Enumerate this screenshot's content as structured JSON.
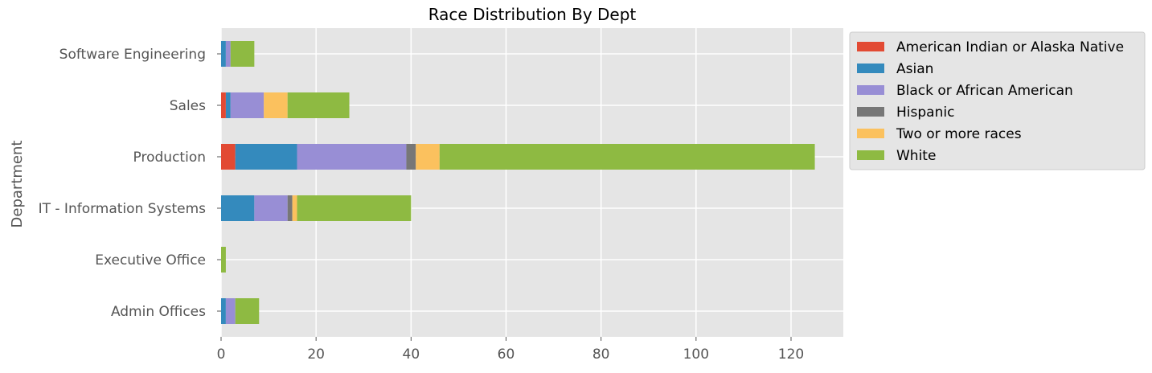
{
  "chart_data": {
    "type": "bar",
    "orientation": "horizontal",
    "stacked": true,
    "title": "Race Distribution By Dept",
    "xlabel": "",
    "ylabel": "Department",
    "xlim": [
      0,
      131
    ],
    "xticks": [
      0,
      20,
      40,
      60,
      80,
      100,
      120
    ],
    "grid": true,
    "legend_position": "outside-right",
    "categories": [
      "Admin Offices",
      "Executive Office",
      "IT - Information Systems",
      "Production",
      "Sales",
      "Software Engineering"
    ],
    "series": [
      {
        "name": "American Indian or Alaska Native",
        "color": "#E24A33",
        "values": [
          0,
          0,
          0,
          3,
          1,
          0
        ]
      },
      {
        "name": "Asian",
        "color": "#348ABD",
        "values": [
          1,
          0,
          7,
          13,
          1,
          1
        ]
      },
      {
        "name": "Black or African American",
        "color": "#988ED5",
        "values": [
          2,
          0,
          7,
          23,
          7,
          1
        ]
      },
      {
        "name": "Hispanic",
        "color": "#777777",
        "values": [
          0,
          0,
          1,
          2,
          0,
          0
        ]
      },
      {
        "name": "Two or more races",
        "color": "#FBC15E",
        "values": [
          0,
          0,
          1,
          5,
          5,
          0
        ]
      },
      {
        "name": "White",
        "color": "#8EBA42",
        "values": [
          5,
          1,
          24,
          79,
          13,
          5
        ]
      }
    ]
  }
}
